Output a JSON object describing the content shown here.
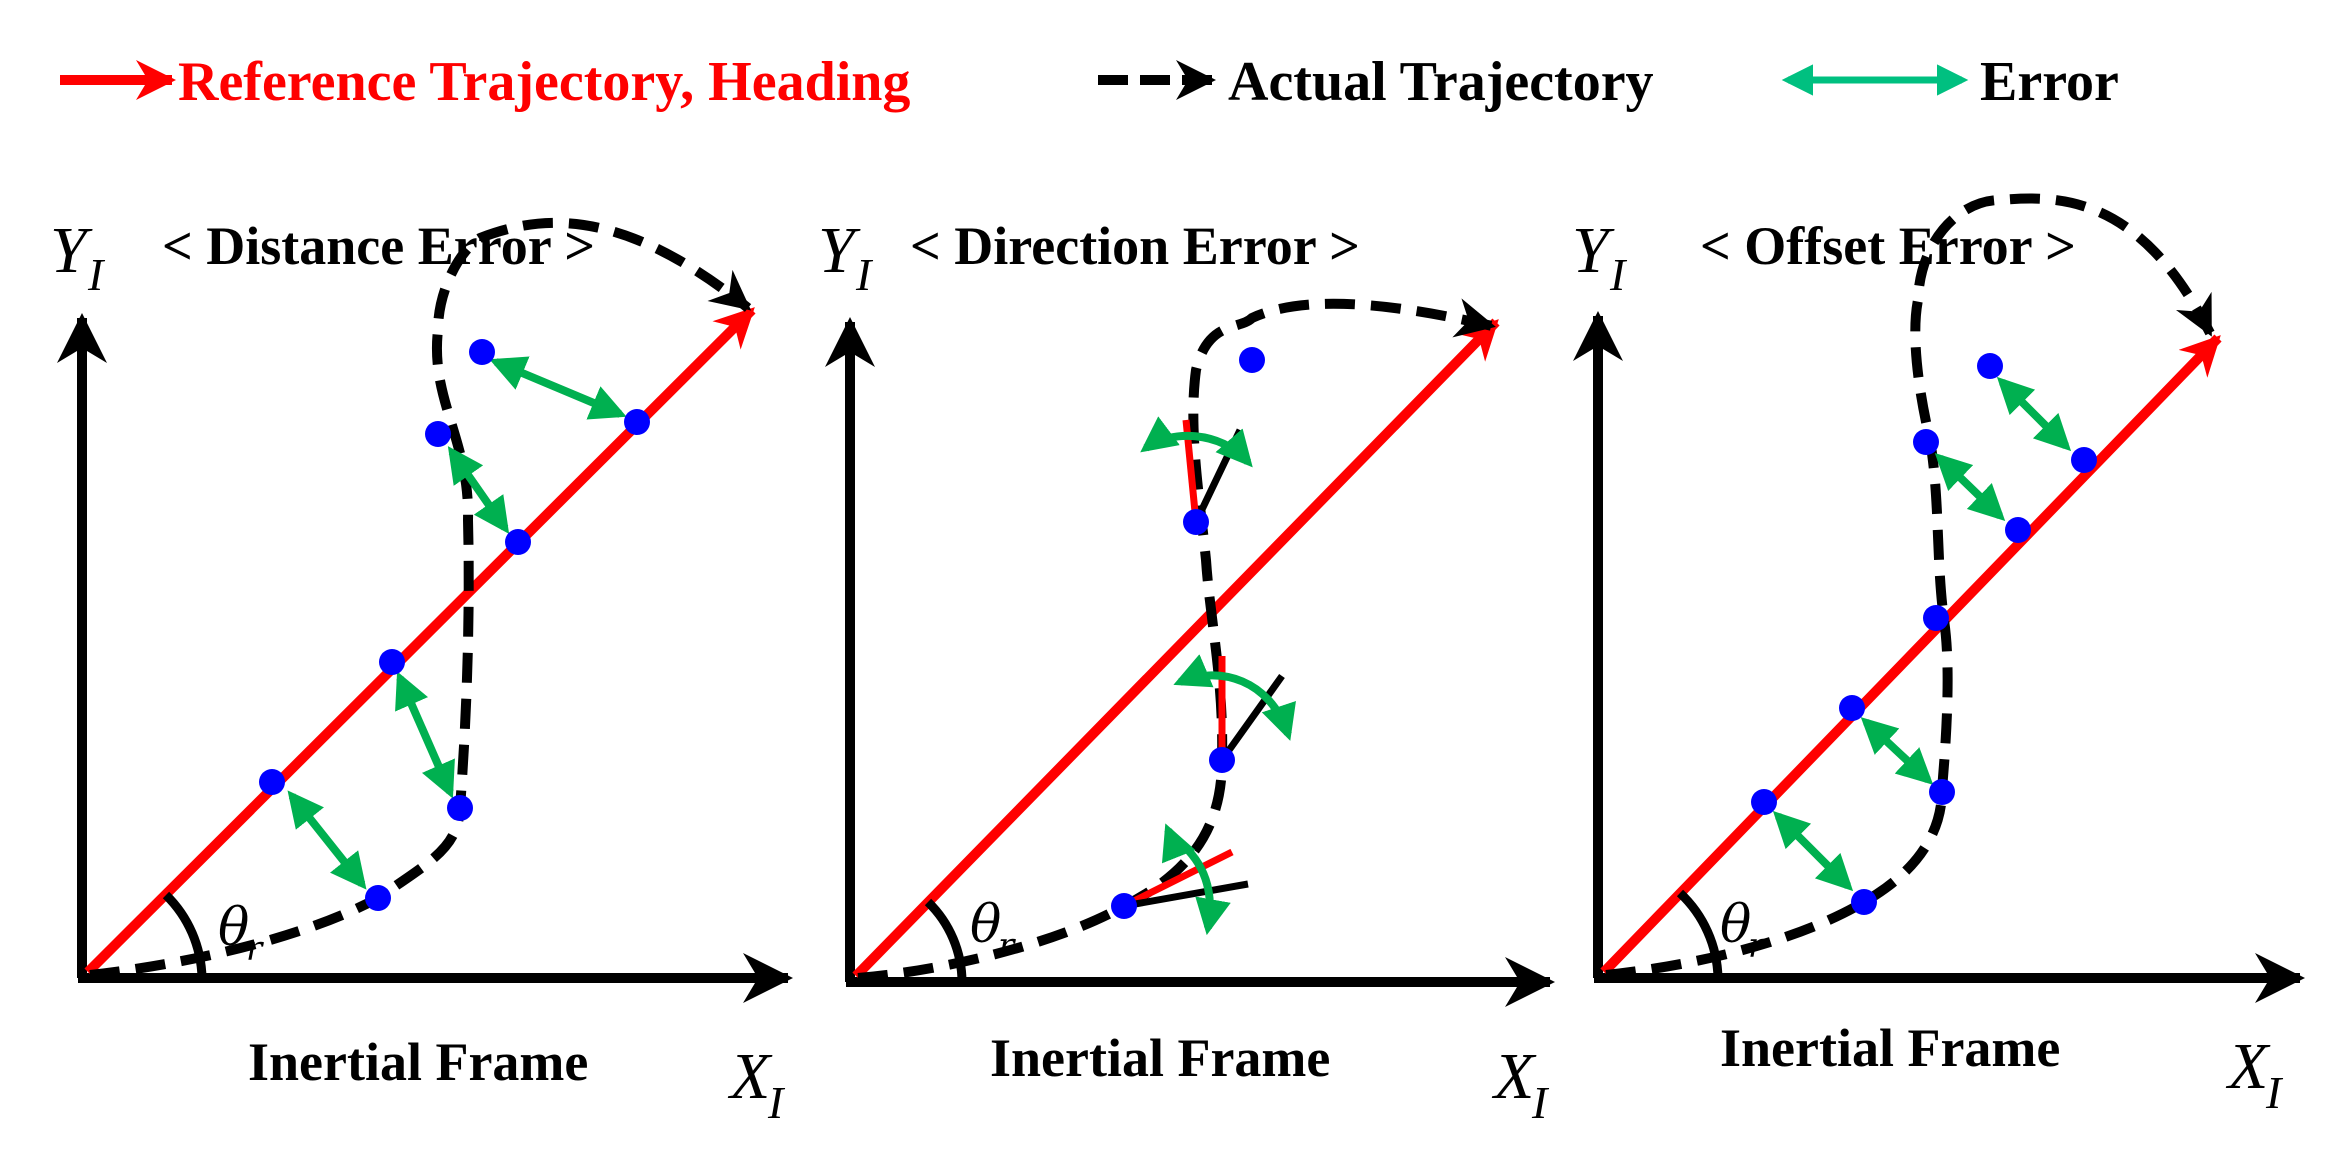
{
  "legend": {
    "reference": "Reference Trajectory, Heading",
    "actual": "Actual Trajectory",
    "error": "Error"
  },
  "colors": {
    "reference": "#ff0000",
    "actual": "#000000",
    "error": "#00b050",
    "legend_error": "#00c080",
    "point": "#0000ff"
  },
  "axes": {
    "y_letter": "Y",
    "x_letter": "X",
    "subscript": "I",
    "angle_symbol": "θ",
    "angle_sub": "r",
    "frame_label": "Inertial Frame"
  },
  "panels": [
    {
      "title": "< Distance Error >"
    },
    {
      "title": "< Direction Error >"
    },
    {
      "title": "< Offset Error >"
    }
  ]
}
